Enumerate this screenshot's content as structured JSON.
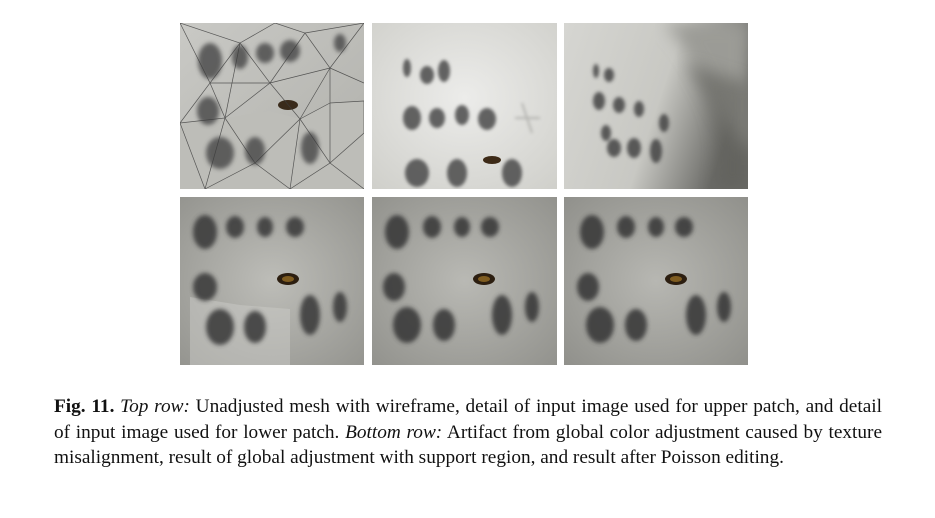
{
  "figure": {
    "panels": [
      {
        "row": "top",
        "index": 1,
        "depicts": "wireframe-mesh"
      },
      {
        "row": "top",
        "index": 2,
        "depicts": "input-image-upper-patch"
      },
      {
        "row": "top",
        "index": 3,
        "depicts": "input-image-lower-patch"
      },
      {
        "row": "bottom",
        "index": 1,
        "depicts": "global-color-artifact"
      },
      {
        "row": "bottom",
        "index": 2,
        "depicts": "global-adjustment-support-region"
      },
      {
        "row": "bottom",
        "index": 3,
        "depicts": "poisson-editing-result"
      }
    ]
  },
  "caption": {
    "label": "Fig. 11.",
    "top_row_label": "Top row:",
    "top_row_text": "Unadjusted mesh with wireframe, detail of input image used for upper patch, and detail of input image used for lower patch.",
    "bottom_row_label": "Bottom row:",
    "bottom_row_text": "Artifact from global color adjustment caused by texture misalignment, result of global adjustment with support region, and result after Poisson editing."
  }
}
